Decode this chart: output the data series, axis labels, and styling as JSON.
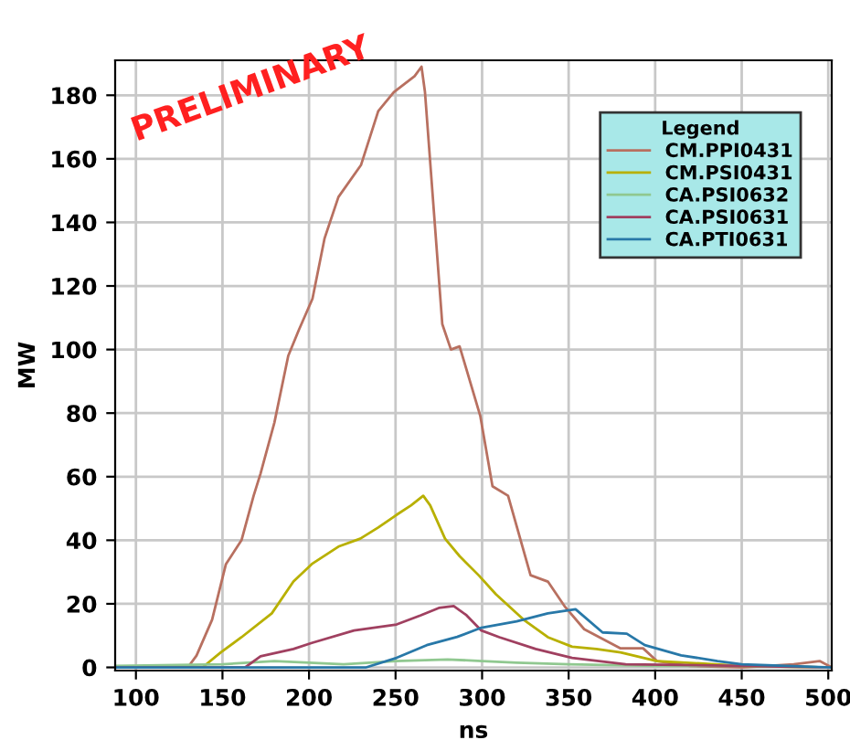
{
  "chart_data": {
    "type": "line",
    "xlabel": "ns",
    "ylabel": "MW",
    "legend_title": "Legend",
    "annotations": [
      "PRELIMINARY"
    ],
    "xlim": [
      88,
      502
    ],
    "ylim": [
      -1,
      191
    ],
    "xticks": [
      100,
      150,
      200,
      250,
      300,
      350,
      400,
      450,
      500
    ],
    "yticks": [
      0,
      20,
      40,
      60,
      80,
      100,
      120,
      140,
      160,
      180
    ],
    "grid": true,
    "legend": "top right",
    "marker": "none",
    "line_style": "solid",
    "series": [
      {
        "name": "CM.PPI0431",
        "color": "#b87060",
        "x": [
          88,
          130,
          135,
          144,
          152,
          161,
          168,
          172,
          180,
          188,
          194,
          202,
          209,
          217,
          230,
          240,
          249,
          261,
          265,
          267,
          277,
          282,
          287,
          299,
          306,
          315,
          328,
          338,
          348,
          359,
          380,
          393,
          401,
          420,
          450,
          480,
          495,
          502
        ],
        "values": [
          0,
          0,
          3.7,
          15,
          32.5,
          40,
          54,
          61,
          77,
          98,
          106,
          116,
          135,
          148,
          158,
          175,
          181,
          186,
          189,
          181,
          108,
          100,
          101,
          79,
          57,
          54,
          29,
          27,
          19,
          12,
          6,
          6,
          2,
          0.5,
          0,
          1,
          2,
          0
        ]
      },
      {
        "name": "CM.PSI0431",
        "color": "#b8b000",
        "x": [
          88,
          138.5,
          149,
          161,
          178.5,
          191,
          201.6,
          217,
          229.6,
          240,
          250.6,
          259,
          266,
          270,
          278.6,
          287,
          298,
          308,
          324,
          338,
          352,
          366,
          380,
          401,
          450,
          502
        ],
        "values": [
          0,
          0,
          4.7,
          9.5,
          17,
          27,
          32.5,
          38,
          40.5,
          44,
          48,
          51,
          54,
          51,
          40.5,
          35,
          29,
          23,
          15,
          9.5,
          6.5,
          5.8,
          4.7,
          2,
          0.5,
          0
        ]
      },
      {
        "name": "CA.PSI0632",
        "color": "#90c890",
        "x": [
          88,
          150,
          180,
          220,
          250,
          280,
          300,
          320,
          350,
          400,
          450,
          502
        ],
        "values": [
          0.5,
          1,
          2,
          1,
          2,
          2.5,
          2,
          1.5,
          1,
          0.5,
          0.5,
          0
        ]
      },
      {
        "name": "CA.PSI0631",
        "color": "#a04060",
        "x": [
          88,
          163,
          172,
          191,
          201.6,
          226,
          250.6,
          264.6,
          275,
          283.6,
          291,
          299.6,
          310,
          331,
          352,
          383,
          450,
          502
        ],
        "values": [
          0,
          0,
          3.5,
          5.8,
          7.7,
          11.6,
          13.5,
          16.4,
          18.7,
          19.3,
          16.4,
          11.6,
          9.5,
          5.8,
          3,
          1,
          0.5,
          0
        ]
      },
      {
        "name": "CA.PTI0631",
        "color": "#2878a8",
        "x": [
          88,
          233,
          250.6,
          268,
          285.6,
          299.6,
          320,
          338,
          354,
          369.6,
          383.6,
          394,
          415,
          436,
          450,
          502
        ],
        "values": [
          0,
          0,
          3,
          7,
          9.6,
          12.5,
          14.5,
          17,
          18.3,
          11,
          10.6,
          7,
          3.8,
          2,
          1,
          0
        ]
      }
    ]
  }
}
